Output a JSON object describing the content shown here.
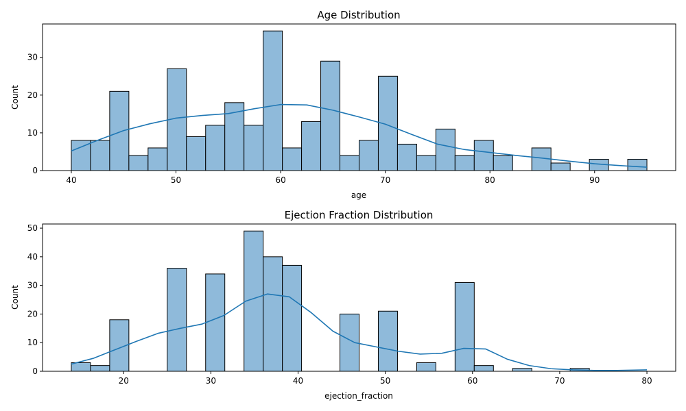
{
  "chart_data": [
    {
      "type": "bar",
      "title": "Age Distribution",
      "xlabel": "age",
      "ylabel": "Count",
      "xlim": [
        37.25,
        97.75
      ],
      "ylim": [
        0,
        38.85
      ],
      "xticks": [
        40,
        50,
        60,
        70,
        80,
        90
      ],
      "yticks": [
        0,
        10,
        20,
        30
      ],
      "bin_start": 40,
      "bin_width": 1.8333,
      "values": [
        8,
        8,
        21,
        4,
        6,
        27,
        9,
        12,
        18,
        12,
        37,
        6,
        13,
        29,
        4,
        8,
        25,
        7,
        4,
        11,
        4,
        8,
        4,
        0,
        6,
        2,
        0,
        3,
        0,
        3
      ],
      "kde": {
        "x": [
          40,
          42.5,
          45,
          47.5,
          50,
          52.5,
          55,
          57.5,
          60,
          62.5,
          65,
          67.5,
          70,
          72.5,
          75,
          77.5,
          80,
          82.5,
          85,
          87.5,
          90,
          92.5,
          95
        ],
        "y": [
          5.2,
          8.0,
          10.6,
          12.4,
          13.9,
          14.6,
          15.1,
          16.4,
          17.5,
          17.4,
          16.0,
          14.2,
          12.3,
          9.6,
          7.0,
          5.6,
          4.8,
          4.0,
          3.3,
          2.5,
          1.8,
          1.3,
          0.9
        ]
      },
      "bar_color": "#8fbada",
      "line_color": "#1f77b4"
    },
    {
      "type": "bar",
      "title": "Ejection Fraction Distribution",
      "xlabel": "ejection_fraction",
      "ylabel": "Count",
      "xlim": [
        10.7,
        83.3
      ],
      "ylim": [
        0,
        51.45
      ],
      "xticks": [
        20,
        30,
        40,
        50,
        60,
        70,
        80
      ],
      "yticks": [
        0,
        10,
        20,
        30,
        40,
        50
      ],
      "bin_start": 14,
      "bin_width": 2.2,
      "values": [
        3,
        2,
        18,
        0,
        0,
        36,
        0,
        34,
        0,
        49,
        40,
        37,
        0,
        0,
        20,
        0,
        21,
        0,
        3,
        0,
        31,
        2,
        0,
        1,
        0,
        0,
        1,
        0,
        0,
        0
      ],
      "kde": {
        "x": [
          14,
          16.5,
          19,
          21.5,
          24,
          26.5,
          29,
          31.5,
          34,
          36.5,
          39,
          41.5,
          44,
          46.5,
          49,
          51.5,
          54,
          56.5,
          59,
          61.5,
          64,
          66.5,
          69,
          71.5,
          74,
          76.5,
          80
        ],
        "y": [
          2.5,
          4.5,
          7.5,
          10.5,
          13.3,
          15.0,
          16.5,
          19.5,
          24.5,
          27.0,
          26.0,
          20.5,
          14.0,
          10.0,
          8.5,
          7.0,
          6.0,
          6.3,
          8.0,
          7.8,
          4.2,
          2.0,
          0.9,
          0.5,
          0.3,
          0.3,
          0.5
        ]
      },
      "bar_color": "#8fbada",
      "line_color": "#1f77b4"
    }
  ]
}
